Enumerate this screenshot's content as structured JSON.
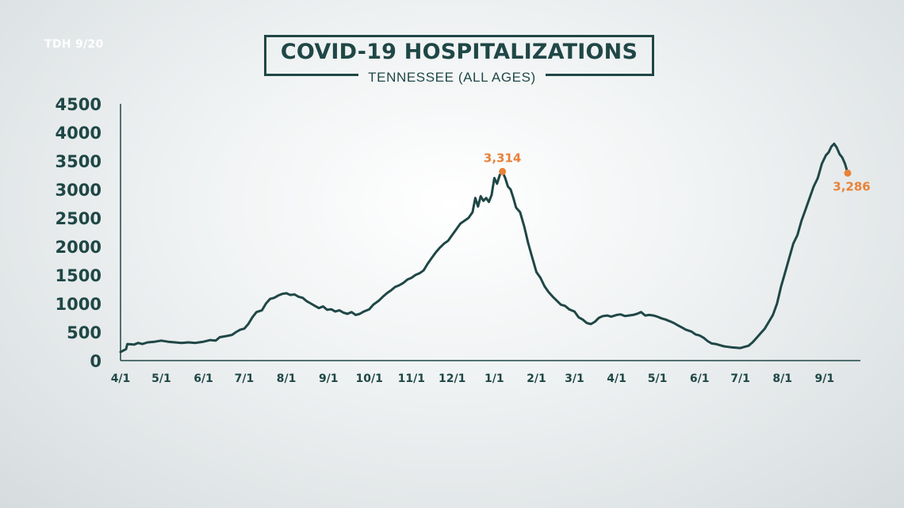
{
  "source_label": "TDH 9/20",
  "title": "COVID-19 HOSPITALIZATIONS",
  "subtitle": "TENNESSEE (ALL AGES)",
  "colors": {
    "line": "#1f4746",
    "accent": "#e8823a",
    "text": "#1f4746"
  },
  "chart_data": {
    "type": "line",
    "title": "COVID-19 HOSPITALIZATIONS",
    "subtitle": "TENNESSEE (ALL AGES)",
    "xlabel": "",
    "ylabel": "",
    "ylim": [
      0,
      4500
    ],
    "yticks": [
      0,
      500,
      1000,
      1500,
      2000,
      2500,
      3000,
      3500,
      4000,
      4500
    ],
    "x_tick_labels": [
      "4/1",
      "5/1",
      "6/1",
      "7/1",
      "8/1",
      "9/1",
      "10/1",
      "11/1",
      "12/1",
      "1/1",
      "2/1",
      "3/1",
      "4/1",
      "5/1",
      "6/1",
      "7/1",
      "8/1",
      "9/1"
    ],
    "x_tick_days": [
      0,
      30,
      61,
      91,
      122,
      153,
      183,
      214,
      244,
      275,
      306,
      334,
      365,
      395,
      426,
      456,
      487,
      518
    ],
    "grid": false,
    "series": [
      {
        "points": [
          [
            0,
            150
          ],
          [
            4,
            200
          ],
          [
            5,
            290
          ],
          [
            10,
            280
          ],
          [
            13,
            310
          ],
          [
            16,
            290
          ],
          [
            20,
            320
          ],
          [
            25,
            330
          ],
          [
            30,
            350
          ],
          [
            35,
            330
          ],
          [
            40,
            320
          ],
          [
            45,
            310
          ],
          [
            50,
            320
          ],
          [
            55,
            310
          ],
          [
            61,
            330
          ],
          [
            66,
            360
          ],
          [
            70,
            350
          ],
          [
            73,
            410
          ],
          [
            78,
            430
          ],
          [
            82,
            450
          ],
          [
            85,
            500
          ],
          [
            88,
            540
          ],
          [
            91,
            560
          ],
          [
            94,
            640
          ],
          [
            97,
            760
          ],
          [
            100,
            850
          ],
          [
            104,
            880
          ],
          [
            107,
            1000
          ],
          [
            110,
            1080
          ],
          [
            113,
            1100
          ],
          [
            116,
            1140
          ],
          [
            119,
            1170
          ],
          [
            122,
            1180
          ],
          [
            125,
            1150
          ],
          [
            128,
            1160
          ],
          [
            131,
            1120
          ],
          [
            134,
            1100
          ],
          [
            137,
            1040
          ],
          [
            140,
            1000
          ],
          [
            143,
            960
          ],
          [
            146,
            920
          ],
          [
            149,
            950
          ],
          [
            152,
            890
          ],
          [
            155,
            900
          ],
          [
            158,
            860
          ],
          [
            161,
            880
          ],
          [
            164,
            840
          ],
          [
            167,
            820
          ],
          [
            170,
            850
          ],
          [
            173,
            800
          ],
          [
            176,
            820
          ],
          [
            179,
            860
          ],
          [
            183,
            900
          ],
          [
            186,
            980
          ],
          [
            190,
            1050
          ],
          [
            193,
            1120
          ],
          [
            196,
            1180
          ],
          [
            199,
            1230
          ],
          [
            202,
            1290
          ],
          [
            205,
            1320
          ],
          [
            208,
            1360
          ],
          [
            211,
            1420
          ],
          [
            214,
            1450
          ],
          [
            217,
            1500
          ],
          [
            220,
            1530
          ],
          [
            223,
            1580
          ],
          [
            226,
            1700
          ],
          [
            229,
            1800
          ],
          [
            232,
            1900
          ],
          [
            235,
            1980
          ],
          [
            238,
            2050
          ],
          [
            241,
            2100
          ],
          [
            244,
            2200
          ],
          [
            247,
            2300
          ],
          [
            250,
            2400
          ],
          [
            253,
            2450
          ],
          [
            256,
            2500
          ],
          [
            259,
            2600
          ],
          [
            261,
            2850
          ],
          [
            263,
            2700
          ],
          [
            265,
            2880
          ],
          [
            267,
            2800
          ],
          [
            269,
            2850
          ],
          [
            271,
            2780
          ],
          [
            273,
            2900
          ],
          [
            275,
            3200
          ],
          [
            277,
            3100
          ],
          [
            279,
            3250
          ],
          [
            281,
            3314
          ],
          [
            283,
            3200
          ],
          [
            285,
            3050
          ],
          [
            287,
            3000
          ],
          [
            289,
            2850
          ],
          [
            291,
            2680
          ],
          [
            294,
            2600
          ],
          [
            297,
            2350
          ],
          [
            300,
            2050
          ],
          [
            303,
            1800
          ],
          [
            306,
            1550
          ],
          [
            309,
            1450
          ],
          [
            312,
            1300
          ],
          [
            315,
            1200
          ],
          [
            318,
            1120
          ],
          [
            321,
            1050
          ],
          [
            324,
            980
          ],
          [
            327,
            960
          ],
          [
            330,
            900
          ],
          [
            334,
            860
          ],
          [
            337,
            760
          ],
          [
            340,
            720
          ],
          [
            343,
            660
          ],
          [
            346,
            640
          ],
          [
            349,
            680
          ],
          [
            352,
            750
          ],
          [
            355,
            780
          ],
          [
            358,
            790
          ],
          [
            361,
            770
          ],
          [
            365,
            800
          ],
          [
            368,
            810
          ],
          [
            371,
            780
          ],
          [
            374,
            790
          ],
          [
            377,
            800
          ],
          [
            380,
            820
          ],
          [
            383,
            850
          ],
          [
            386,
            790
          ],
          [
            389,
            800
          ],
          [
            392,
            790
          ],
          [
            395,
            770
          ],
          [
            398,
            740
          ],
          [
            401,
            720
          ],
          [
            404,
            690
          ],
          [
            407,
            660
          ],
          [
            410,
            620
          ],
          [
            413,
            580
          ],
          [
            416,
            540
          ],
          [
            420,
            510
          ],
          [
            423,
            460
          ],
          [
            426,
            440
          ],
          [
            429,
            400
          ],
          [
            432,
            340
          ],
          [
            435,
            300
          ],
          [
            438,
            290
          ],
          [
            441,
            270
          ],
          [
            444,
            250
          ],
          [
            447,
            240
          ],
          [
            450,
            230
          ],
          [
            453,
            225
          ],
          [
            456,
            220
          ],
          [
            459,
            240
          ],
          [
            462,
            260
          ],
          [
            465,
            320
          ],
          [
            468,
            400
          ],
          [
            471,
            480
          ],
          [
            474,
            560
          ],
          [
            477,
            680
          ],
          [
            480,
            800
          ],
          [
            483,
            1000
          ],
          [
            486,
            1300
          ],
          [
            489,
            1550
          ],
          [
            492,
            1800
          ],
          [
            495,
            2050
          ],
          [
            498,
            2200
          ],
          [
            501,
            2450
          ],
          [
            504,
            2650
          ],
          [
            507,
            2850
          ],
          [
            510,
            3050
          ],
          [
            513,
            3200
          ],
          [
            516,
            3450
          ],
          [
            519,
            3600
          ],
          [
            521,
            3650
          ],
          [
            523,
            3750
          ],
          [
            525,
            3800
          ],
          [
            527,
            3730
          ],
          [
            529,
            3620
          ],
          [
            531,
            3560
          ],
          [
            533,
            3450
          ],
          [
            535,
            3286
          ]
        ]
      }
    ],
    "annotations": [
      {
        "x": 281,
        "y": 3314,
        "label": "3,314"
      },
      {
        "x": 535,
        "y": 3286,
        "label": "3,286"
      }
    ]
  }
}
